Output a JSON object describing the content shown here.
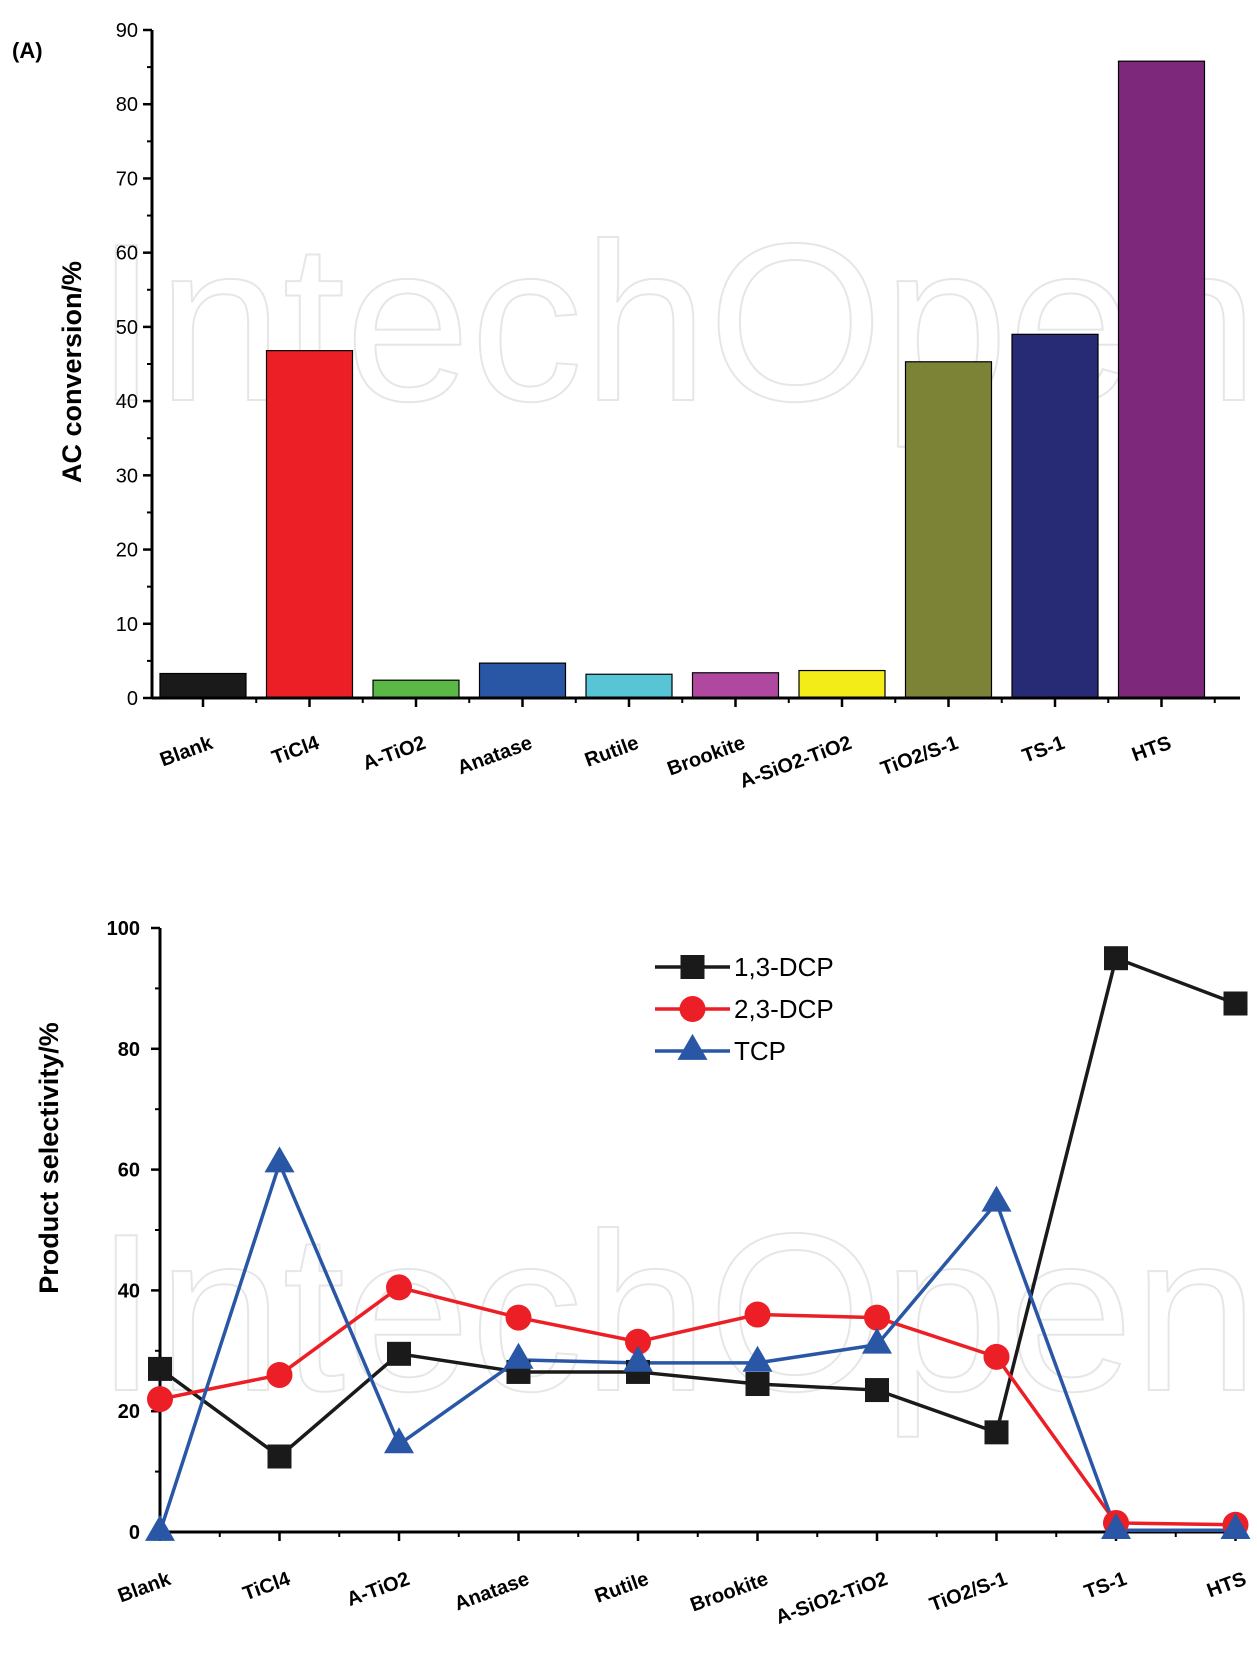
{
  "watermark_text": "IntechOpen",
  "chart_data": [
    {
      "type": "bar",
      "panel_label": "(A)",
      "ylabel": "AC conversion/%",
      "ylim": [
        0,
        90
      ],
      "yticks": [
        0,
        10,
        20,
        30,
        40,
        50,
        60,
        70,
        80,
        90
      ],
      "categories": [
        "Blank",
        "TiCl4",
        "A-TiO2",
        "Anatase",
        "Rutile",
        "Brookite",
        "A-SiO2-TiO2",
        "TiO2/S-1",
        "TS-1",
        "HTS"
      ],
      "values": [
        3.3,
        46.8,
        2.4,
        4.7,
        3.2,
        3.4,
        3.7,
        45.3,
        49.0,
        85.8
      ],
      "colors": [
        "#1a1a1a",
        "#ec1f26",
        "#5cb846",
        "#2a57a5",
        "#58c5d6",
        "#b148a0",
        "#f3ec19",
        "#7c8236",
        "#272a74",
        "#7d287b"
      ],
      "grid": false
    },
    {
      "type": "line",
      "ylabel": "Product selectivity/%",
      "ylim": [
        0,
        100
      ],
      "yticks": [
        0,
        20,
        40,
        60,
        80,
        100
      ],
      "categories": [
        "Blank",
        "TiCl4",
        "A-TiO2",
        "Anatase",
        "Rutile",
        "Brookite",
        "A-SiO2-TiO2",
        "TiO2/S-1",
        "TS-1",
        "HTS"
      ],
      "legend_position": "top-center",
      "grid": false,
      "series": [
        {
          "name": "1,3-DCP",
          "color": "#1a1a1a",
          "marker": "square",
          "values": [
            27.0,
            12.5,
            29.5,
            26.5,
            26.5,
            24.5,
            23.5,
            16.5,
            95.0,
            87.5
          ]
        },
        {
          "name": "2,3-DCP",
          "color": "#ec1f26",
          "marker": "circle",
          "values": [
            22.0,
            26.0,
            40.5,
            35.5,
            31.5,
            36.0,
            35.5,
            29.0,
            1.5,
            1.2
          ]
        },
        {
          "name": "TCP",
          "color": "#2a57a5",
          "marker": "triangle",
          "values": [
            0.0,
            61.0,
            14.5,
            28.5,
            28.0,
            28.0,
            31.0,
            54.5,
            0.3,
            0.3
          ]
        }
      ]
    }
  ]
}
